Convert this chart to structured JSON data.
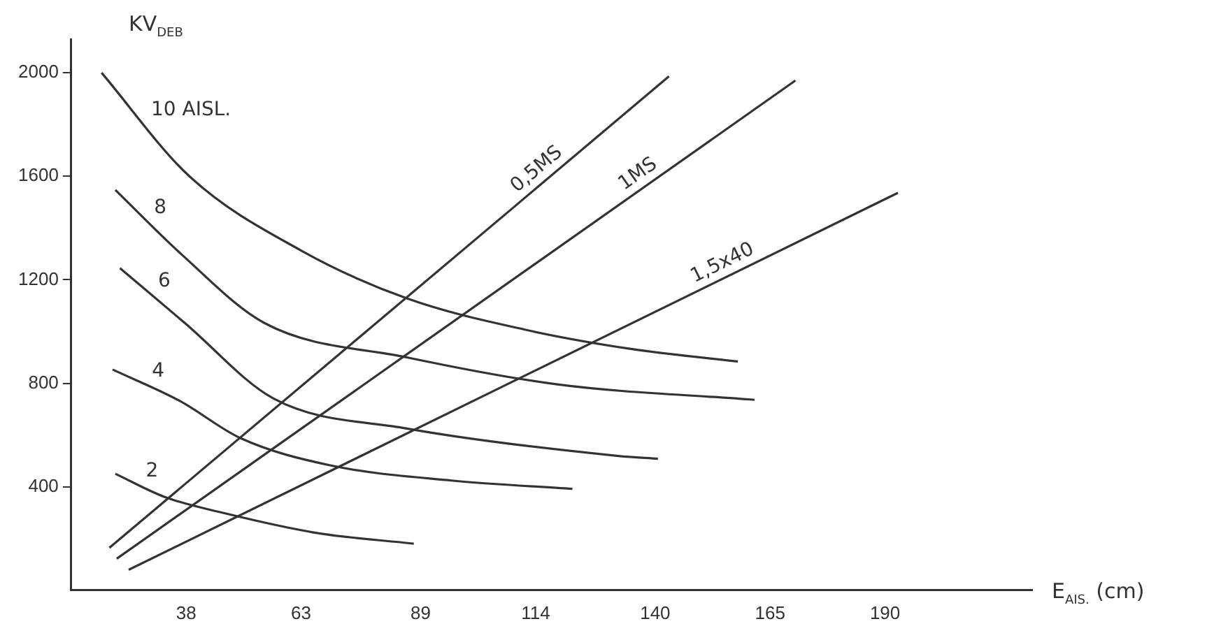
{
  "chart_data": {
    "type": "line",
    "xlabel": "E$_{AIS.}$ (cm)",
    "ylabel": "KV$_{DEB}$",
    "xlim": [
      13,
      222
    ],
    "ylim": [
      0,
      2130
    ],
    "xticks": [
      38,
      63,
      89,
      114,
      140,
      165,
      190
    ],
    "yticks": [
      400,
      800,
      1200,
      1600,
      2000
    ],
    "grid": false,
    "legend": false,
    "marker": "none",
    "line_style": "solid",
    "series": [
      {
        "name": "10 AISL.",
        "color": "#333333",
        "x": [
          19.6,
          38.7,
          63,
          86,
          112,
          135,
          158
        ],
        "values": [
          2000,
          1600,
          1313,
          1128,
          1006,
          932,
          884
        ]
      },
      {
        "name": "8",
        "color": "#333333",
        "x": [
          22.6,
          37,
          55,
          86,
          119,
          161.6
        ],
        "values": [
          1547,
          1298,
          1033,
          900,
          795,
          736
        ]
      },
      {
        "name": "6",
        "color": "#333333",
        "x": [
          23.6,
          37.7,
          57,
          86,
          132,
          140.6
        ],
        "values": [
          1245,
          1033,
          741,
          625,
          519,
          508
        ]
      },
      {
        "name": "4",
        "color": "#333333",
        "x": [
          22,
          36.7,
          49.8,
          69.5,
          95.7,
          122
        ],
        "values": [
          853,
          731,
          588,
          482,
          424,
          392
        ]
      },
      {
        "name": "2",
        "color": "#333333",
        "x": [
          22.6,
          33.4,
          46.5,
          66.2,
          87.5
        ],
        "values": [
          450,
          360,
          297,
          222,
          180
        ]
      },
      {
        "name": "0,5MS",
        "color": "#333333",
        "x": [
          21.3,
          143
        ],
        "values": [
          164,
          1986
        ]
      },
      {
        "name": "1MS",
        "color": "#333333",
        "x": [
          22.9,
          170.5
        ],
        "values": [
          122,
          1970
        ]
      },
      {
        "name": "1,5x40",
        "color": "#333333",
        "x": [
          25.5,
          192.8
        ],
        "values": [
          79,
          1536
        ]
      }
    ]
  }
}
